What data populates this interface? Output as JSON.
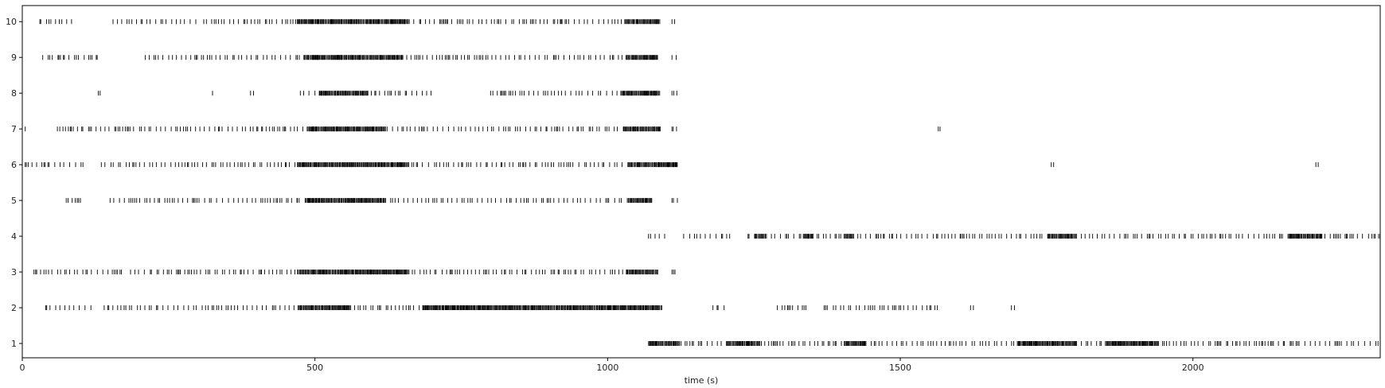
{
  "chart_data": {
    "type": "scatter",
    "style": "raster / event plot",
    "title": "",
    "xlabel": "time (s)",
    "ylabel": "",
    "xlim": [
      0,
      2320
    ],
    "ylim": [
      0.6,
      10.45
    ],
    "x_ticks": [
      0,
      500,
      1000,
      1500,
      2000
    ],
    "y_ticks": [
      1,
      2,
      3,
      4,
      5,
      6,
      7,
      8,
      9,
      10
    ],
    "grid": false,
    "legend": "none",
    "marker_color": "#000000",
    "x_tick_labels": [
      "0",
      "500",
      "1000",
      "1500",
      "2000"
    ],
    "y_tick_labels": [
      "1",
      "2",
      "3",
      "4",
      "5",
      "6",
      "7",
      "8",
      "9",
      "10"
    ],
    "series": [
      {
        "y": 10,
        "active_ranges": [
          [
            30,
            90
          ],
          [
            155,
            300
          ],
          [
            310,
            470
          ],
          [
            470,
            1090
          ],
          [
            1110,
            1120
          ]
        ],
        "dense_ranges": [
          [
            470,
            660
          ],
          [
            1025,
            1090
          ]
        ]
      },
      {
        "y": 9,
        "active_ranges": [
          [
            35,
            135
          ],
          [
            210,
            470
          ],
          [
            470,
            1090
          ],
          [
            1110,
            1120
          ]
        ],
        "dense_ranges": [
          [
            480,
            650
          ],
          [
            1030,
            1085
          ]
        ]
      },
      {
        "y": 8,
        "active_ranges": [
          [
            130,
            133
          ],
          [
            325,
            335
          ],
          [
            390,
            395
          ],
          [
            475,
            700
          ],
          [
            800,
            1090
          ],
          [
            1110,
            1120
          ]
        ],
        "dense_ranges": [
          [
            500,
            590
          ],
          [
            1020,
            1090
          ]
        ]
      },
      {
        "y": 7,
        "active_ranges": [
          [
            0,
            5
          ],
          [
            60,
            470
          ],
          [
            470,
            1090
          ],
          [
            1110,
            1120
          ],
          [
            1565,
            1568
          ]
        ],
        "dense_ranges": [
          [
            480,
            620
          ],
          [
            1020,
            1090
          ]
        ]
      },
      {
        "y": 6,
        "active_ranges": [
          [
            5,
            110
          ],
          [
            135,
            470
          ],
          [
            470,
            1120
          ],
          [
            1758,
            1762
          ],
          [
            2210,
            2214
          ]
        ],
        "dense_ranges": [
          [
            470,
            660
          ],
          [
            1030,
            1120
          ]
        ]
      },
      {
        "y": 5,
        "active_ranges": [
          [
            75,
            100
          ],
          [
            150,
            470
          ],
          [
            470,
            1080
          ],
          [
            1110,
            1120
          ]
        ],
        "dense_ranges": [
          [
            480,
            620
          ],
          [
            1030,
            1075
          ]
        ]
      },
      {
        "y": 4,
        "active_ranges": [
          [
            1070,
            1100
          ],
          [
            1130,
            1210
          ],
          [
            1240,
            2320
          ]
        ],
        "dense_ranges": [
          [
            1250,
            1270
          ],
          [
            1330,
            1350
          ],
          [
            1400,
            1420
          ],
          [
            1750,
            1800
          ],
          [
            2160,
            2220
          ]
        ]
      },
      {
        "y": 3,
        "active_ranges": [
          [
            20,
            170
          ],
          [
            185,
            470
          ],
          [
            470,
            1090
          ],
          [
            1110,
            1120
          ]
        ],
        "dense_ranges": [
          [
            470,
            660
          ],
          [
            1030,
            1085
          ]
        ]
      },
      {
        "y": 2,
        "active_ranges": [
          [
            40,
            120
          ],
          [
            140,
            1100
          ],
          [
            1180,
            1200
          ],
          [
            1290,
            1340
          ],
          [
            1370,
            1570
          ],
          [
            1620,
            1625
          ],
          [
            1690,
            1695
          ]
        ],
        "dense_ranges": [
          [
            470,
            560
          ],
          [
            680,
            1090
          ]
        ]
      },
      {
        "y": 1,
        "active_ranges": [
          [
            1070,
            2320
          ]
        ],
        "dense_ranges": [
          [
            1070,
            1120
          ],
          [
            1200,
            1260
          ],
          [
            1400,
            1440
          ],
          [
            1700,
            1800
          ],
          [
            1850,
            1940
          ]
        ]
      }
    ]
  }
}
